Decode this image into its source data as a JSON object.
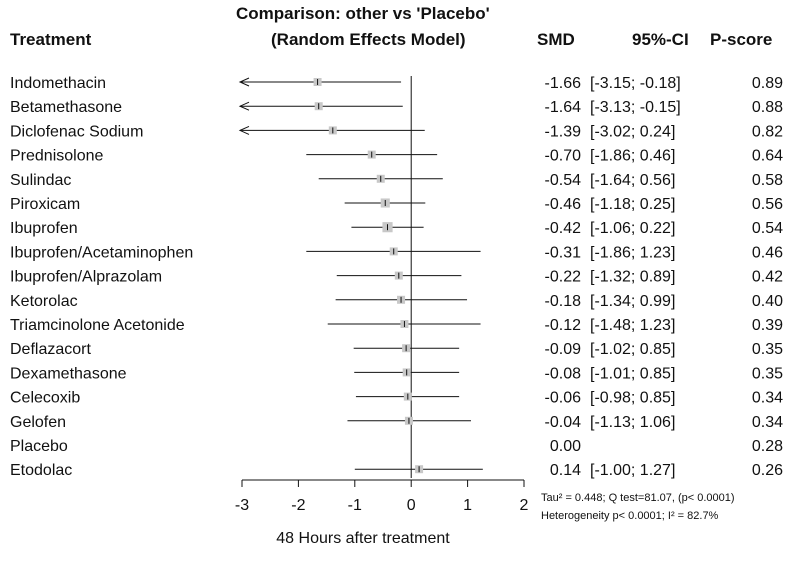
{
  "header": {
    "title": "Comparison: other vs 'Placebo'",
    "subtitle": "(Random Effects Model)",
    "treatment": "Treatment",
    "smd": "SMD",
    "ci": "95%-CI",
    "pscore": "P-score"
  },
  "footnote": {
    "line1": "Tau² = 0.448; Q test=81.07, (p< 0.0001)",
    "line2": "Heterogeneity p< 0.0001; I² = 82.7%"
  },
  "chart_data": {
    "type": "forest",
    "xlabel": "48 Hours after treatment",
    "xlim": [
      -3,
      2
    ],
    "xticks": [
      -3,
      -2,
      -1,
      0,
      1,
      2
    ],
    "colors": {
      "line": "#111111",
      "box": "#c8c8c8"
    },
    "rows": [
      {
        "name": "Indomethacin",
        "smd": -1.66,
        "lo": -3.15,
        "hi": -0.18,
        "smd_text": "-1.66",
        "ci_text": "[-3.15; -0.18]",
        "p": "0.89"
      },
      {
        "name": "Betamethasone",
        "smd": -1.64,
        "lo": -3.13,
        "hi": -0.15,
        "smd_text": "-1.64",
        "ci_text": "[-3.13; -0.15]",
        "p": "0.88"
      },
      {
        "name": "Diclofenac Sodium",
        "smd": -1.39,
        "lo": -3.02,
        "hi": 0.24,
        "smd_text": "-1.39",
        "ci_text": "[-3.02; 0.24]",
        "p": "0.82"
      },
      {
        "name": "Prednisolone",
        "smd": -0.7,
        "lo": -1.86,
        "hi": 0.46,
        "smd_text": "-0.70",
        "ci_text": "[-1.86; 0.46]",
        "p": "0.64"
      },
      {
        "name": "Sulindac",
        "smd": -0.54,
        "lo": -1.64,
        "hi": 0.56,
        "smd_text": "-0.54",
        "ci_text": "[-1.64; 0.56]",
        "p": "0.58"
      },
      {
        "name": "Piroxicam",
        "smd": -0.46,
        "lo": -1.18,
        "hi": 0.25,
        "smd_text": "-0.46",
        "ci_text": "[-1.18; 0.25]",
        "p": "0.56"
      },
      {
        "name": "Ibuprofen",
        "smd": -0.42,
        "lo": -1.06,
        "hi": 0.22,
        "smd_text": "-0.42",
        "ci_text": "[-1.06; 0.22]",
        "p": "0.54"
      },
      {
        "name": "Ibuprofen/Acetaminophen",
        "smd": -0.31,
        "lo": -1.86,
        "hi": 1.23,
        "smd_text": "-0.31",
        "ci_text": "[-1.86; 1.23]",
        "p": "0.46"
      },
      {
        "name": "Ibuprofen/Alprazolam",
        "smd": -0.22,
        "lo": -1.32,
        "hi": 0.89,
        "smd_text": "-0.22",
        "ci_text": "[-1.32; 0.89]",
        "p": "0.42"
      },
      {
        "name": "Ketorolac",
        "smd": -0.18,
        "lo": -1.34,
        "hi": 0.99,
        "smd_text": "-0.18",
        "ci_text": "[-1.34; 0.99]",
        "p": "0.40"
      },
      {
        "name": "Triamcinolone Acetonide",
        "smd": -0.12,
        "lo": -1.48,
        "hi": 1.23,
        "smd_text": "-0.12",
        "ci_text": "[-1.48; 1.23]",
        "p": "0.39"
      },
      {
        "name": "Deflazacort",
        "smd": -0.09,
        "lo": -1.02,
        "hi": 0.85,
        "smd_text": "-0.09",
        "ci_text": "[-1.02; 0.85]",
        "p": "0.35"
      },
      {
        "name": "Dexamethasone",
        "smd": -0.08,
        "lo": -1.01,
        "hi": 0.85,
        "smd_text": "-0.08",
        "ci_text": "[-1.01; 0.85]",
        "p": "0.35"
      },
      {
        "name": "Celecoxib",
        "smd": -0.06,
        "lo": -0.98,
        "hi": 0.85,
        "smd_text": "-0.06",
        "ci_text": "[-0.98; 0.85]",
        "p": "0.34"
      },
      {
        "name": "Gelofen",
        "smd": -0.04,
        "lo": -1.13,
        "hi": 1.06,
        "smd_text": "-0.04",
        "ci_text": "[-1.13; 1.06]",
        "p": "0.34"
      },
      {
        "name": "Placebo",
        "smd": 0.0,
        "lo": null,
        "hi": null,
        "smd_text": "0.00",
        "ci_text": "",
        "p": "0.28"
      },
      {
        "name": "Etodolac",
        "smd": 0.14,
        "lo": -1.0,
        "hi": 1.27,
        "smd_text": "0.14",
        "ci_text": "[-1.00; 1.27]",
        "p": "0.26"
      }
    ]
  }
}
